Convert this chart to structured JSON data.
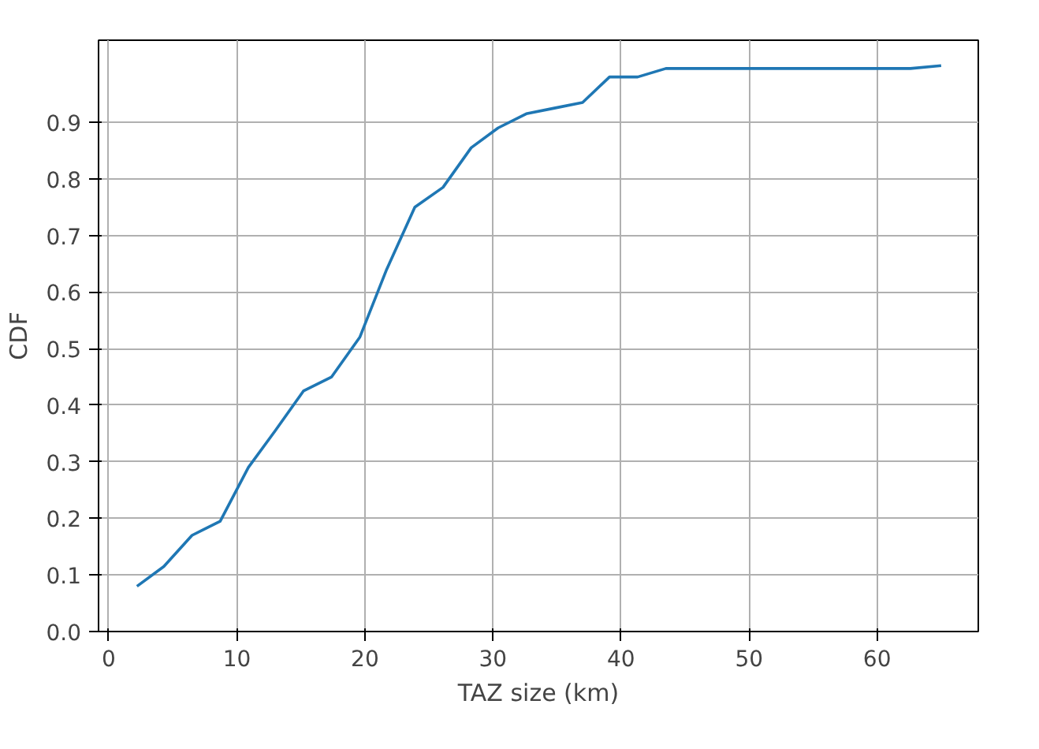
{
  "chart_data": {
    "type": "line",
    "xlabel": "TAZ size (km)",
    "ylabel": "CDF",
    "x": [
      2.2,
      4.3,
      6.5,
      8.7,
      10.9,
      13,
      15.2,
      17.4,
      19.6,
      21.7,
      23.9,
      26.1,
      28.3,
      30.4,
      32.6,
      34.8,
      37,
      39.1,
      41.3,
      43.5,
      62.6,
      65
    ],
    "series": [
      {
        "color": "#1f77b4",
        "values": [
          0.08,
          0.115,
          0.17,
          0.195,
          0.29,
          0.355,
          0.425,
          0.45,
          0.52,
          0.64,
          0.75,
          0.785,
          0.855,
          0.89,
          0.915,
          0.925,
          0.935,
          0.98,
          0.98,
          0.995,
          0.995,
          1.0
        ]
      }
    ],
    "xlim": [
      -0.8,
      67.9
    ],
    "ylim": [
      0,
      1.045
    ],
    "xticks": [
      0,
      10,
      20,
      30,
      40,
      50,
      60
    ],
    "yticks": [
      {
        "value": 0,
        "label": "0.0"
      },
      0.1,
      0.2,
      0.3,
      0.4,
      0.5,
      0.6,
      0.7,
      0.8,
      0.9
    ],
    "grid": true,
    "line_style": "solid"
  }
}
